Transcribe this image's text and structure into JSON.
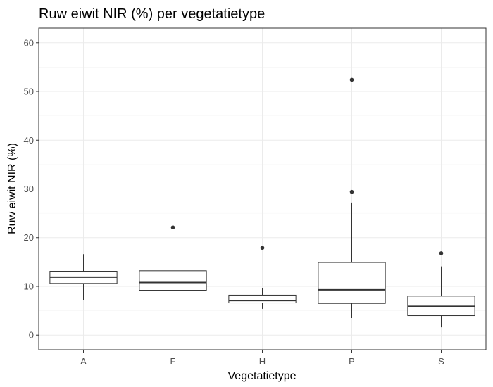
{
  "chart_data": {
    "type": "boxplot",
    "title": "Ruw eiwit NIR (%) per vegetatietype",
    "xlabel": "Vegetatietype",
    "ylabel": "Ruw eiwit NIR (%)",
    "ylim": [
      -3,
      63
    ],
    "yticks": [
      0,
      10,
      20,
      30,
      40,
      50,
      60
    ],
    "ytick_labels": [
      "0",
      "10",
      "20",
      "30",
      "40",
      "50",
      "60"
    ],
    "categories": [
      "A",
      "F",
      "H",
      "P",
      "S"
    ],
    "boxes": [
      {
        "category": "A",
        "whisker_low": 7.2,
        "q1": 10.6,
        "median": 11.9,
        "q3": 13.1,
        "whisker_high": 16.6,
        "outliers": []
      },
      {
        "category": "F",
        "whisker_low": 6.9,
        "q1": 9.2,
        "median": 10.8,
        "q3": 13.2,
        "whisker_high": 18.7,
        "outliers": [
          22.1
        ]
      },
      {
        "category": "H",
        "whisker_low": 5.4,
        "q1": 6.6,
        "median": 7.1,
        "q3": 8.2,
        "whisker_high": 9.7,
        "outliers": [
          17.9
        ]
      },
      {
        "category": "P",
        "whisker_low": 3.5,
        "q1": 6.5,
        "median": 9.3,
        "q3": 14.9,
        "whisker_high": 27.2,
        "outliers": [
          29.4,
          52.4
        ]
      },
      {
        "category": "S",
        "whisker_low": 1.6,
        "q1": 4.0,
        "median": 5.9,
        "q3": 8.0,
        "whisker_high": 14.1,
        "outliers": [
          16.8
        ]
      }
    ],
    "grid": true,
    "colors": {
      "panel_border": "#333333",
      "grid_major": "#ebebeb",
      "grid_minor": "#f5f5f5",
      "box_line": "#333333",
      "box_fill": "#ffffff",
      "outlier": "#333333"
    }
  }
}
